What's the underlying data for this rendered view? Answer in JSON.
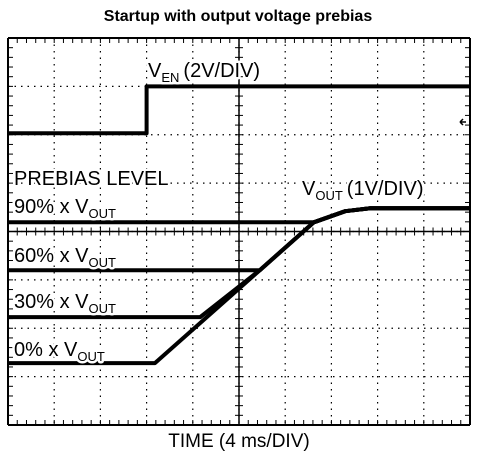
{
  "chart_data": {
    "type": "line",
    "title": "Startup with output voltage prebias",
    "xlabel": "TIME (4 ms/DIV)",
    "xlim": [
      0,
      10
    ],
    "ylim": [
      0,
      8
    ],
    "xticks": [
      0,
      1,
      2,
      3,
      4,
      5,
      6,
      7,
      8,
      9,
      10
    ],
    "yticks": [
      0,
      1,
      2,
      3,
      4,
      5,
      6,
      7,
      8
    ],
    "grid": true,
    "color": "#000000",
    "series": [
      {
        "name": "V_EN",
        "color": "#000000",
        "x": [
          0,
          3,
          3,
          10
        ],
        "values": [
          6.03,
          6.03,
          7.0,
          7.0
        ]
      },
      {
        "name": "0%",
        "color": "#000000",
        "x": [
          0,
          3.18,
          5.45,
          6.62,
          7.3,
          7.84,
          10
        ],
        "values": [
          1.28,
          1.28,
          3.2,
          4.19,
          4.42,
          4.48,
          4.48
        ]
      },
      {
        "name": "30%",
        "color": "#000000",
        "x": [
          0,
          4.16,
          5.45,
          6.62,
          7.3,
          7.84,
          10
        ],
        "values": [
          2.23,
          2.23,
          3.2,
          4.19,
          4.42,
          4.48,
          4.48
        ]
      },
      {
        "name": "60%",
        "color": "#000000",
        "x": [
          0,
          5.45,
          6.62,
          7.3,
          7.84,
          10
        ],
        "values": [
          3.2,
          3.2,
          4.19,
          4.42,
          4.48,
          4.48
        ]
      },
      {
        "name": "90%",
        "color": "#000000",
        "x": [
          0,
          6.62,
          7.3,
          7.84,
          10
        ],
        "values": [
          4.19,
          4.19,
          4.42,
          4.48,
          4.48
        ]
      }
    ],
    "annotations": [
      {
        "text": "V",
        "sub": "EN",
        "rest": "(2V/DIV)"
      },
      {
        "text": "PREBIAS LEVEL"
      },
      {
        "text": "90% x V",
        "sub": "OUT"
      },
      {
        "text": "V",
        "sub": "OUT",
        "rest": "(1V/DIV)"
      },
      {
        "text": "60% x V",
        "sub": "OUT"
      },
      {
        "text": "30% x V",
        "sub": "OUT"
      },
      {
        "text": "0% x V",
        "sub": "OUT"
      }
    ]
  }
}
